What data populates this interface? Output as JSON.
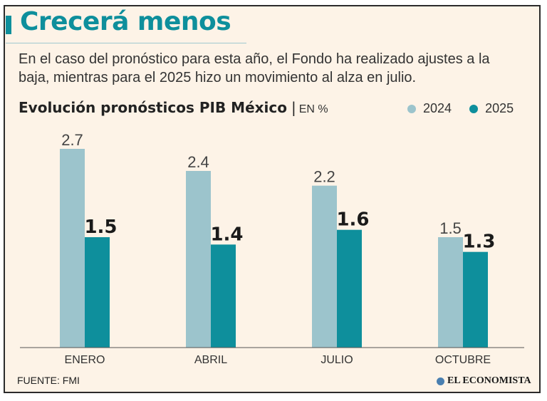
{
  "header": {
    "title": "Crecerá menos",
    "subtitle": "En el caso del pronóstico para esta año, el Fondo ha realizado ajustes a la baja, mientras para el 2025 hizo un movimiento al alza en julio."
  },
  "colors": {
    "accent": "#0e8f9c",
    "series_2024": "#9cc4cc",
    "series_2025": "#0e8f9c",
    "background": "#fdf3e7"
  },
  "chart_data": {
    "type": "bar",
    "title": "Evolución pronósticos PIB México",
    "unit": "EN %",
    "categories": [
      "ENERO",
      "ABRIL",
      "JULIO",
      "OCTUBRE"
    ],
    "series": [
      {
        "name": "2024",
        "values": [
          2.7,
          2.4,
          2.2,
          1.5
        ]
      },
      {
        "name": "2025",
        "values": [
          1.5,
          1.4,
          1.6,
          1.3
        ]
      }
    ],
    "ylim": [
      0,
      2.7
    ],
    "grid": false,
    "legend_position": "top-right",
    "data_labels": true
  },
  "footer": {
    "source": "FUENTE: FMI",
    "logo_text": "EL ECONOMISTA"
  }
}
